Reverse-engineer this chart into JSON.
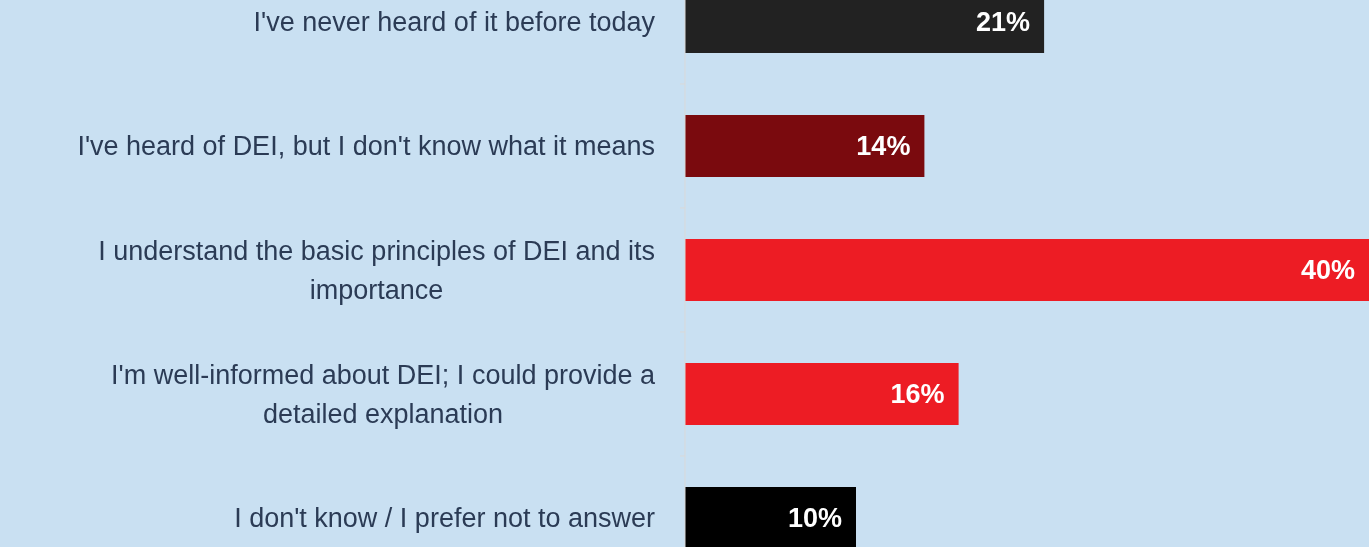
{
  "chart_data": {
    "type": "bar",
    "orientation": "horizontal",
    "categories": [
      "I've never heard of it before today",
      "I've heard of DEI, but I don't know what it means",
      "I understand the basic principles of DEI and its importance",
      "I'm well-informed about DEI; I could provide a detailed explanation",
      "I don't know / I prefer not to answer"
    ],
    "values": [
      21,
      14,
      40,
      16,
      10
    ],
    "colors": [
      "#222222",
      "#7a0a0e",
      "#ed1c24",
      "#ed1c24",
      "#000000"
    ],
    "value_labels": [
      "21%",
      "14%",
      "40%",
      "16%",
      "10%"
    ]
  }
}
